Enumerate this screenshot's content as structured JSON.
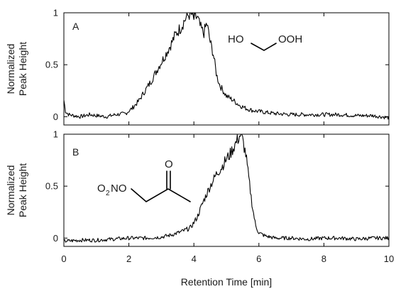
{
  "chart_data": [
    {
      "panel_label": "A",
      "type": "line",
      "ylabel": [
        "Normalized",
        "Peak Height"
      ],
      "xlim": [
        0,
        10
      ],
      "ylim": [
        -0.08,
        1
      ],
      "yticks": [
        0,
        0.5,
        1
      ],
      "ytick_labels": [
        "0",
        "0.5",
        "1"
      ],
      "xticks": [
        0,
        2,
        4,
        6,
        8,
        10
      ],
      "xtick_labels": [
        "",
        "",
        "",
        "",
        "",
        ""
      ],
      "molecule_labels": {
        "left": "HO",
        "right": "OOH"
      },
      "series": [
        {
          "x": [
            0,
            0.05,
            0.15,
            0.3,
            0.5,
            0.8,
            1.0,
            1.3,
            1.6,
            1.9,
            2.1,
            2.3,
            2.5,
            2.7,
            2.9,
            3.1,
            3.3,
            3.45,
            3.6,
            3.7,
            3.8,
            3.9,
            4.0,
            4.1,
            4.2,
            4.3,
            4.4,
            4.5,
            4.6,
            4.7,
            4.8,
            5.0,
            5.2,
            5.4,
            5.6,
            5.8,
            6.0,
            6.5,
            7.0,
            7.5,
            8.0,
            8.5,
            9.0,
            9.5,
            10.0
          ],
          "y": [
            0.16,
            0.05,
            0.02,
            0.01,
            0.0,
            0.02,
            0.01,
            0.0,
            0.02,
            0.03,
            0.08,
            0.15,
            0.25,
            0.35,
            0.47,
            0.58,
            0.7,
            0.8,
            0.86,
            0.92,
            0.97,
            1.0,
            0.94,
            0.96,
            0.86,
            0.8,
            0.9,
            0.72,
            0.6,
            0.4,
            0.3,
            0.2,
            0.16,
            0.11,
            0.08,
            0.06,
            0.05,
            0.03,
            0.02,
            0.02,
            0.02,
            0.02,
            0.01,
            0.01,
            -0.01
          ]
        }
      ]
    },
    {
      "panel_label": "B",
      "type": "line",
      "ylabel": [
        "Normalized",
        "Peak Height"
      ],
      "xlabel": "Retention Time [min]",
      "xlim": [
        0,
        10
      ],
      "ylim": [
        -0.08,
        1
      ],
      "yticks": [
        0,
        0.5,
        1
      ],
      "ytick_labels": [
        "0",
        "0.5",
        "1"
      ],
      "xticks": [
        0,
        2,
        4,
        6,
        8,
        10
      ],
      "xtick_labels": [
        "0",
        "2",
        "4",
        "6",
        "8",
        "10"
      ],
      "molecule_labels": {
        "o2": "O",
        "sub2": "2",
        "no": "NO",
        "carbonyl_o": "O"
      },
      "series": [
        {
          "x": [
            0,
            0.5,
            1.0,
            1.5,
            2.0,
            2.5,
            3.0,
            3.3,
            3.6,
            3.9,
            4.1,
            4.3,
            4.5,
            4.7,
            4.85,
            5.0,
            5.1,
            5.2,
            5.3,
            5.4,
            5.45,
            5.5,
            5.6,
            5.7,
            5.8,
            5.9,
            6.0,
            6.2,
            6.5,
            7.0,
            7.5,
            8.0,
            8.5,
            9.0,
            9.5,
            10.0
          ],
          "y": [
            -0.03,
            -0.02,
            -0.02,
            -0.01,
            0.0,
            0.0,
            0.01,
            0.03,
            0.06,
            0.1,
            0.2,
            0.36,
            0.5,
            0.62,
            0.68,
            0.76,
            0.8,
            0.86,
            0.92,
            0.98,
            1.0,
            0.94,
            0.8,
            0.55,
            0.3,
            0.12,
            0.05,
            0.02,
            0.0,
            0.0,
            -0.01,
            0.0,
            0.0,
            -0.01,
            0.0,
            0.0
          ]
        }
      ]
    }
  ]
}
